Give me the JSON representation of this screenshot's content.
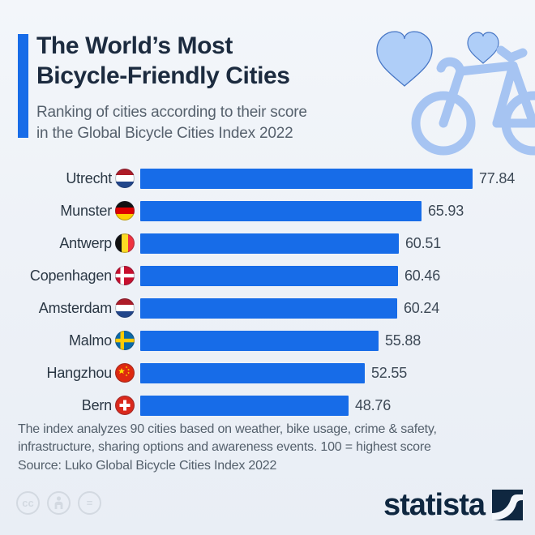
{
  "page": {
    "background": "#edf1f7",
    "accent_color": "#176CE8"
  },
  "header": {
    "title_line1": "The World’s Most",
    "title_line2": "Bicycle-Friendly Cities",
    "subtitle_line1": "Ranking of cities according to their score",
    "subtitle_line2": "in the Global Bicycle Cities Index 2022"
  },
  "chart_data": {
    "type": "bar",
    "orientation": "horizontal",
    "title": "The World’s Most Bicycle-Friendly Cities",
    "subtitle": "Ranking of cities according to their score in the Global Bicycle Cities Index 2022",
    "categories": [
      "Utrecht",
      "Munster",
      "Antwerp",
      "Copenhagen",
      "Amsterdam",
      "Malmo",
      "Hangzhou",
      "Bern"
    ],
    "values": [
      77.84,
      65.93,
      60.51,
      60.46,
      60.24,
      55.88,
      52.55,
      48.76
    ],
    "flags": [
      "netherlands",
      "germany",
      "belgium",
      "denmark",
      "netherlands",
      "sweden",
      "china",
      "switzerland"
    ],
    "value_labels": [
      "77.84",
      "65.93",
      "60.51",
      "60.46",
      "60.24",
      "55.88",
      "52.55",
      "48.76"
    ],
    "xlim": [
      0,
      100
    ],
    "bar_color": "#176CE8",
    "grid": false,
    "legend": false
  },
  "footer": {
    "note_line1": "The index analyzes 90 cities based on weather, bike usage, crime & safety,",
    "note_line2": "infrastructure, sharing options and awareness events. 100 = highest score",
    "source": "Source: Luko Global Bicycle Cities Index 2022"
  },
  "branding": {
    "logo_text": "statista",
    "license_cc_label": "cc",
    "license_nd_label": "="
  },
  "decoration": {
    "heart_fill": "#AFCEF8",
    "heart_stroke": "#4877C5",
    "bike_color": "#A6C4F2"
  }
}
